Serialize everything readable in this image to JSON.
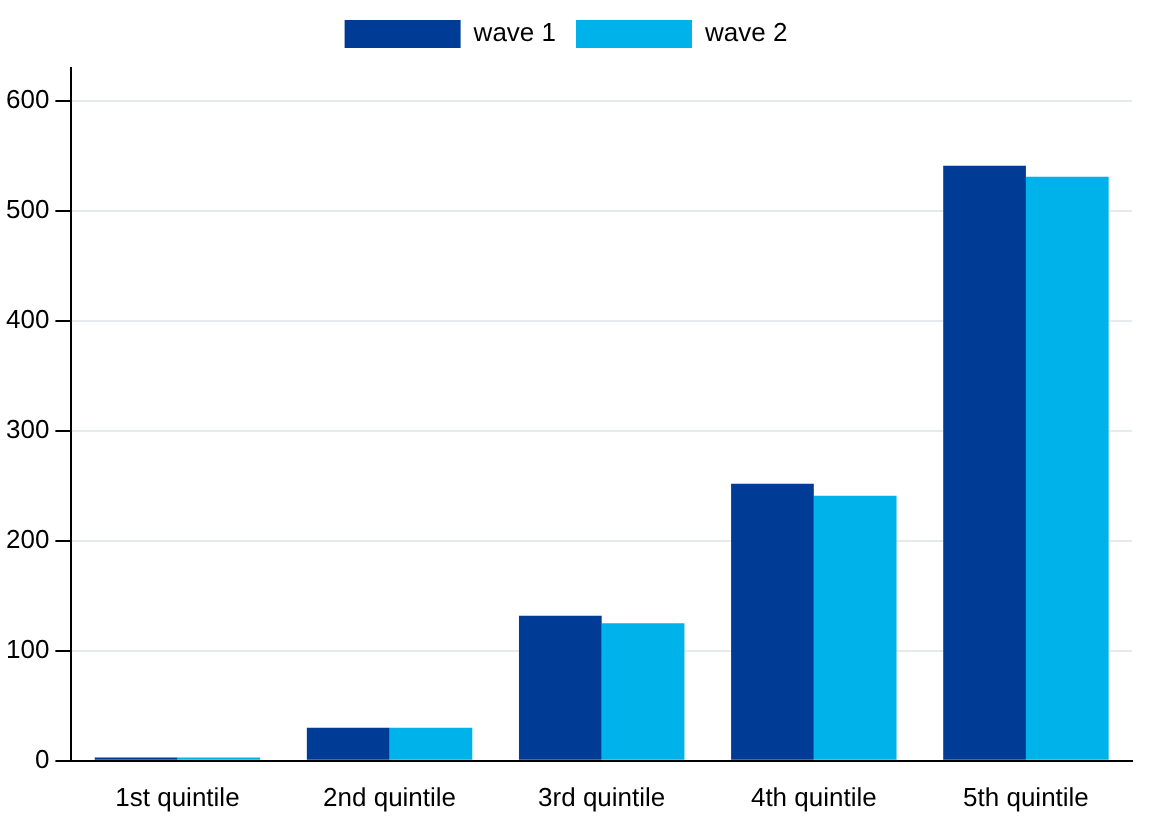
{
  "chart_data": {
    "type": "bar",
    "categories": [
      "1st quintile",
      "2nd quintile",
      "3rd quintile",
      "4th quintile",
      "5th quintile"
    ],
    "series": [
      {
        "name": "wave 1",
        "color": "#003c96",
        "values": [
          3,
          30,
          132,
          252,
          541
        ]
      },
      {
        "name": "wave 2",
        "color": "#00b2ea",
        "values": [
          3,
          30,
          125,
          241,
          531
        ]
      }
    ],
    "ylim": [
      0,
      630
    ],
    "yticks": [
      0,
      100,
      200,
      300,
      400,
      500,
      600
    ],
    "grid": "y",
    "legend": "top"
  }
}
